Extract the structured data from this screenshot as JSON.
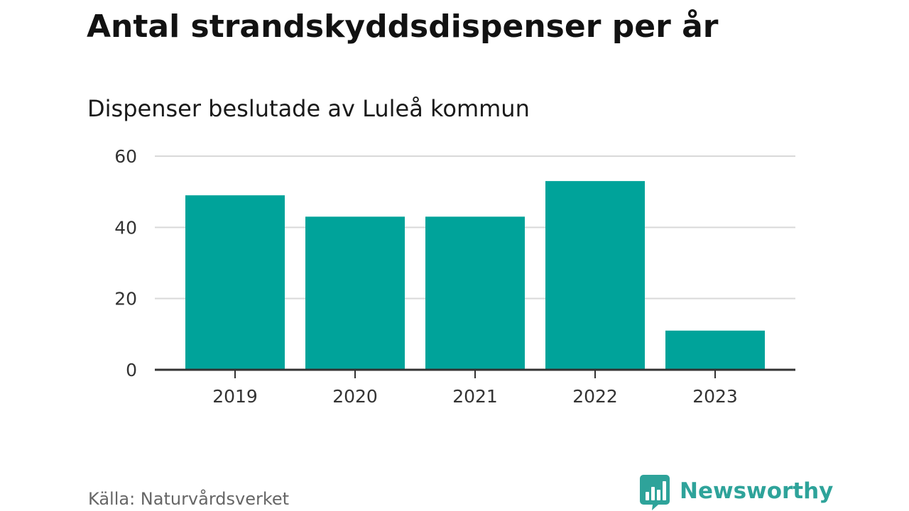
{
  "title": "Antal strandskyddsdispenser per år",
  "subtitle": "Dispenser beslutade av Luleå kommun",
  "source": "Källa: Naturvårdsverket",
  "brand": {
    "name": "Newsworthy",
    "logo_icon": "bar-chart-speech-bubble-icon"
  },
  "colors": {
    "bar": "#00a39a",
    "grid": "#d9d9d9",
    "axis": "#333333",
    "brand": "#2ea39a"
  },
  "chart_data": {
    "type": "bar",
    "title": "Antal strandskyddsdispenser per år",
    "subtitle": "Dispenser beslutade av Luleå kommun",
    "categories": [
      "2019",
      "2020",
      "2021",
      "2022",
      "2023"
    ],
    "values": [
      49,
      43,
      43,
      53,
      11
    ],
    "xlabel": "",
    "ylabel": "",
    "ylim": [
      0,
      60
    ],
    "yticks": [
      0,
      20,
      40,
      60
    ],
    "grid": true,
    "legend": "none"
  }
}
